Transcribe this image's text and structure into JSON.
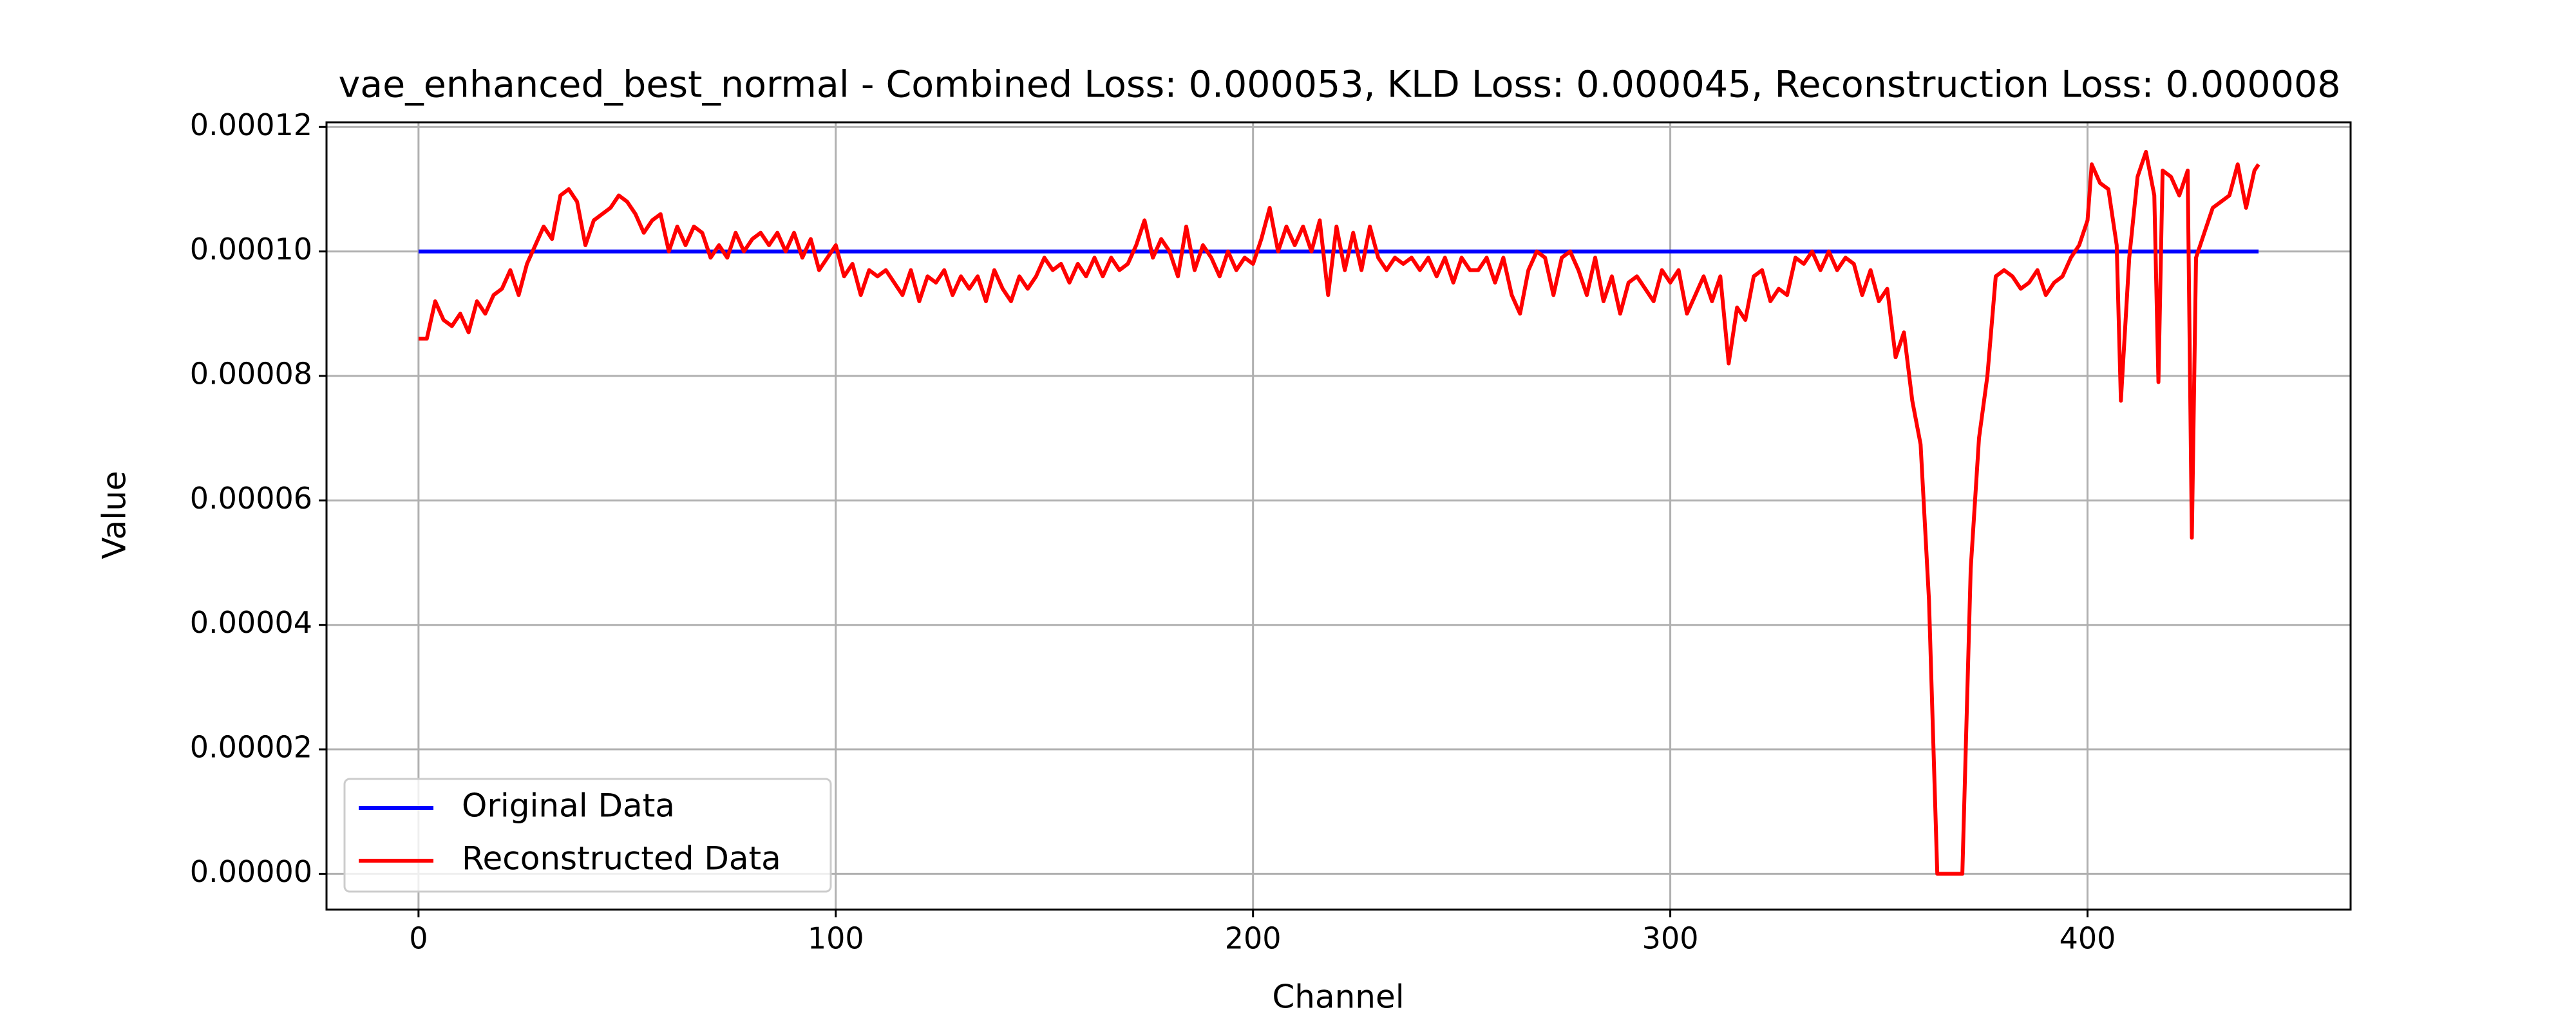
{
  "chart_data": {
    "type": "line",
    "title": "vae_enhanced_best_normal - Combined Loss: 0.000053, KLD Loss: 0.000045, Reconstruction Loss: 0.000008",
    "x_label": "Channel",
    "y_label": "Value",
    "xlim": [
      -22.05,
      463.05
    ],
    "ylim": [
      -5.75e-06,
      0.00012075
    ],
    "xticks": [
      0,
      100,
      200,
      300,
      400
    ],
    "yticks": [
      {
        "value": 0,
        "label": "0.00000"
      },
      2e-05,
      4e-05,
      6e-05,
      8e-05,
      {
        "value": 0.0001,
        "label": "0.00010"
      },
      0.00012
    ],
    "grid": true,
    "legend": "lower left",
    "series": [
      {
        "name": "Original Data",
        "color": "#0000ff",
        "x": [
          0,
          441
        ],
        "values": [
          0.0001,
          0.0001
        ]
      },
      {
        "name": "Reconstructed Data",
        "color": "#ff0000",
        "x": [
          0,
          2,
          4,
          6,
          8,
          10,
          12,
          14,
          16,
          18,
          20,
          22,
          24,
          26,
          28,
          30,
          32,
          34,
          36,
          38,
          40,
          42,
          44,
          46,
          48,
          50,
          52,
          54,
          56,
          58,
          60,
          62,
          64,
          66,
          68,
          70,
          72,
          74,
          76,
          78,
          80,
          82,
          84,
          86,
          88,
          90,
          92,
          94,
          96,
          98,
          100,
          102,
          104,
          106,
          108,
          110,
          112,
          114,
          116,
          118,
          120,
          122,
          124,
          126,
          128,
          130,
          132,
          134,
          136,
          138,
          140,
          142,
          144,
          146,
          148,
          150,
          152,
          154,
          156,
          158,
          160,
          162,
          164,
          166,
          168,
          170,
          172,
          174,
          176,
          178,
          180,
          182,
          184,
          186,
          188,
          190,
          192,
          194,
          196,
          198,
          200,
          202,
          204,
          206,
          208,
          210,
          212,
          214,
          216,
          218,
          220,
          222,
          224,
          226,
          228,
          230,
          232,
          234,
          236,
          238,
          240,
          242,
          244,
          246,
          248,
          250,
          252,
          254,
          256,
          258,
          260,
          262,
          264,
          266,
          268,
          270,
          272,
          274,
          276,
          278,
          280,
          282,
          284,
          286,
          288,
          290,
          292,
          294,
          296,
          298,
          300,
          302,
          304,
          306,
          308,
          310,
          312,
          314,
          316,
          318,
          320,
          322,
          324,
          326,
          328,
          330,
          332,
          334,
          336,
          338,
          340,
          342,
          344,
          346,
          348,
          350,
          352,
          354,
          356,
          358,
          360,
          362,
          364,
          366,
          368,
          370,
          372,
          374,
          376,
          378,
          380,
          382,
          384,
          386,
          388,
          390,
          392,
          394,
          396,
          398,
          400,
          401,
          403,
          405,
          407,
          408,
          410,
          412,
          414,
          416,
          417,
          418,
          420,
          422,
          424,
          425,
          426,
          428,
          430,
          432,
          434,
          436,
          438,
          440,
          441
        ],
        "values": [
          8.6e-05,
          8.6e-05,
          9.2e-05,
          8.9e-05,
          8.8e-05,
          9e-05,
          8.7e-05,
          9.2e-05,
          9e-05,
          9.3e-05,
          9.4e-05,
          9.7e-05,
          9.3e-05,
          9.8e-05,
          0.000101,
          0.000104,
          0.000102,
          0.000109,
          0.00011,
          0.000108,
          0.000101,
          0.000105,
          0.000106,
          0.000107,
          0.000109,
          0.000108,
          0.000106,
          0.000103,
          0.000105,
          0.000106,
          0.0001,
          0.000104,
          0.000101,
          0.000104,
          0.000103,
          9.9e-05,
          0.000101,
          9.9e-05,
          0.000103,
          0.0001,
          0.000102,
          0.000103,
          0.000101,
          0.000103,
          0.0001,
          0.000103,
          9.9e-05,
          0.000102,
          9.7e-05,
          9.9e-05,
          0.000101,
          9.6e-05,
          9.8e-05,
          9.3e-05,
          9.7e-05,
          9.6e-05,
          9.7e-05,
          9.5e-05,
          9.3e-05,
          9.7e-05,
          9.2e-05,
          9.6e-05,
          9.5e-05,
          9.7e-05,
          9.3e-05,
          9.6e-05,
          9.4e-05,
          9.6e-05,
          9.2e-05,
          9.7e-05,
          9.4e-05,
          9.2e-05,
          9.6e-05,
          9.4e-05,
          9.6e-05,
          9.9e-05,
          9.7e-05,
          9.8e-05,
          9.5e-05,
          9.8e-05,
          9.6e-05,
          9.9e-05,
          9.6e-05,
          9.9e-05,
          9.7e-05,
          9.8e-05,
          0.000101,
          0.000105,
          9.9e-05,
          0.000102,
          0.0001,
          9.6e-05,
          0.000104,
          9.7e-05,
          0.000101,
          9.9e-05,
          9.6e-05,
          0.0001,
          9.7e-05,
          9.9e-05,
          9.8e-05,
          0.000102,
          0.000107,
          0.0001,
          0.000104,
          0.000101,
          0.000104,
          0.0001,
          0.000105,
          9.3e-05,
          0.000104,
          9.7e-05,
          0.000103,
          9.7e-05,
          0.000104,
          9.9e-05,
          9.7e-05,
          9.9e-05,
          9.8e-05,
          9.9e-05,
          9.7e-05,
          9.9e-05,
          9.6e-05,
          9.9e-05,
          9.5e-05,
          9.9e-05,
          9.7e-05,
          9.7e-05,
          9.9e-05,
          9.5e-05,
          9.9e-05,
          9.3e-05,
          9e-05,
          9.7e-05,
          0.0001,
          9.9e-05,
          9.3e-05,
          9.9e-05,
          0.0001,
          9.7e-05,
          9.3e-05,
          9.9e-05,
          9.2e-05,
          9.6e-05,
          9e-05,
          9.5e-05,
          9.6e-05,
          9.4e-05,
          9.2e-05,
          9.7e-05,
          9.5e-05,
          9.7e-05,
          9e-05,
          9.3e-05,
          9.6e-05,
          9.2e-05,
          9.6e-05,
          8.2e-05,
          9.1e-05,
          8.9e-05,
          9.6e-05,
          9.7e-05,
          9.2e-05,
          9.4e-05,
          9.3e-05,
          9.9e-05,
          9.8e-05,
          0.0001,
          9.7e-05,
          0.0001,
          9.7e-05,
          9.9e-05,
          9.8e-05,
          9.3e-05,
          9.7e-05,
          9.2e-05,
          9.4e-05,
          8.3e-05,
          8.7e-05,
          7.6e-05,
          6.9e-05,
          4.4e-05,
          0,
          0,
          0,
          0,
          4.9e-05,
          7e-05,
          8e-05,
          9.6e-05,
          9.7e-05,
          9.6e-05,
          9.4e-05,
          9.5e-05,
          9.7e-05,
          9.3e-05,
          9.5e-05,
          9.6e-05,
          9.9e-05,
          0.000101,
          0.000105,
          0.000114,
          0.000111,
          0.00011,
          0.000101,
          7.6e-05,
          9.9e-05,
          0.000112,
          0.000116,
          0.000109,
          7.9e-05,
          0.000113,
          0.000112,
          0.000109,
          0.000113,
          5.4e-05,
          9.9e-05,
          0.000103,
          0.000107,
          0.000108,
          0.000109,
          0.000114,
          0.000107,
          0.000113,
          0.000114
        ]
      }
    ]
  }
}
